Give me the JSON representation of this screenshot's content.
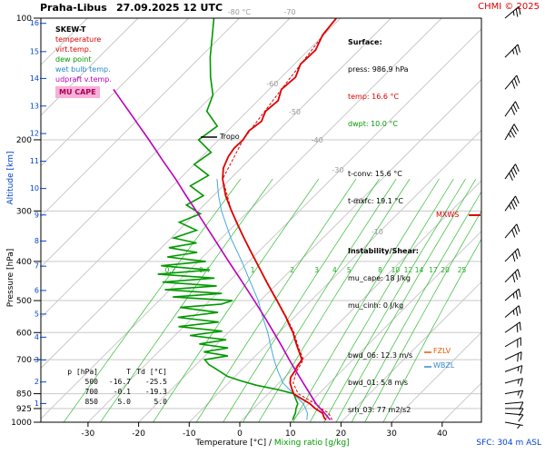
{
  "header": {
    "station": "Praha-Libus",
    "datetime": "27.09.2025 12 UTC",
    "copyright": "CHMI © 2025"
  },
  "legend": {
    "title": "SKEW-T",
    "items": [
      {
        "label": "temperature",
        "color": "#dd0000"
      },
      {
        "label": "virt.temp.",
        "color": "#dd0000"
      },
      {
        "label": "dew point",
        "color": "#009900"
      },
      {
        "label": "wet bulb temp.",
        "color": "#2288cc"
      },
      {
        "label": "udpraft v.temp.",
        "color": "#bb00bb"
      }
    ],
    "mu_cape_label": "MU CAPE",
    "mu_cape_bg": "#f7b0d8",
    "mu_cape_color": "#aa0055"
  },
  "surface_panel": {
    "title": "Surface:",
    "rows": [
      {
        "text": "press: 986.9 hPa",
        "color": "#000000"
      },
      {
        "text": "temp: 16.6 °C",
        "color": "#dd0000"
      },
      {
        "text": "dwpt: 10.0 °C",
        "color": "#009900"
      },
      {
        "text": "t-conv: 15.6 °C",
        "color": "#000000"
      },
      {
        "text": "t-mxfc: 19.1 °C",
        "color": "#000000"
      }
    ]
  },
  "instability_panel": {
    "title": "Instability/Shear:",
    "rows": [
      {
        "text": "mu_cape: 18 J/kg",
        "color": "#000000"
      },
      {
        "text": "mu_cinh: 0 J/kg",
        "color": "#000000"
      }
    ],
    "rows2": [
      {
        "text": "bwd_06: 12.3 m/s",
        "color": "#000000"
      },
      {
        "text": "bwd_01: 5.8 m/s",
        "color": "#000000"
      },
      {
        "text": "srh_03: 77 m2/s2",
        "color": "#000000"
      }
    ]
  },
  "level_table": {
    "headers": [
      "p [hPa]",
      "T",
      "Td [°C]"
    ],
    "rows": [
      [
        "500",
        "-16.7",
        "-25.5"
      ],
      [
        "700",
        "-0.1",
        "-19.3"
      ],
      [
        "850",
        "5.0",
        "5.0"
      ]
    ]
  },
  "markers": {
    "tropo": "Tropo",
    "mxws": "MXWS",
    "fzlv": "FZLV",
    "wbzl": "WBZL"
  },
  "axis": {
    "pressure_label": "Pressure [hPa]",
    "altitude_label": "Altitude [km]",
    "x_label_temp": "Temperature [°C]",
    "x_label_sep": " / ",
    "x_label_mix": "Mixing ratio [g/kg]",
    "sfc_label": "SFC: 304 m ASL"
  },
  "chart_data": {
    "type": "line",
    "diagram": "skew-t-log-p",
    "pressure_range_hpa": [
      100,
      1000
    ],
    "temp_axis_range_c": [
      -30,
      40
    ],
    "pressure_ticks_hpa": [
      100,
      200,
      300,
      400,
      500,
      600,
      700,
      850,
      925,
      1000
    ],
    "temp_ticks_c": [
      -30,
      -20,
      -10,
      0,
      10,
      20,
      30,
      40
    ],
    "altitude_marks_km": [
      [
        16,
        103
      ],
      [
        15,
        121
      ],
      [
        14,
        141
      ],
      [
        13,
        165
      ],
      [
        12,
        193
      ],
      [
        11,
        226
      ],
      [
        10,
        264
      ],
      [
        9,
        307
      ],
      [
        8,
        356
      ],
      [
        7,
        411
      ],
      [
        6,
        472
      ],
      [
        5,
        540
      ],
      [
        4,
        616
      ],
      [
        3,
        701
      ],
      [
        2,
        795
      ],
      [
        1,
        899
      ]
    ],
    "isotherm_labels": [
      {
        "text": "-80 °C",
        "t": -80,
        "y": 16
      },
      {
        "text": "-70",
        "t": -70,
        "y": 16
      },
      {
        "text": "-60",
        "t": -60,
        "y": 95
      },
      {
        "text": "-50",
        "t": -50,
        "y": 126
      },
      {
        "text": "-40",
        "t": -40,
        "y": 157
      },
      {
        "text": "-30",
        "t": -30,
        "y": 190
      },
      {
        "text": "-20",
        "t": -20,
        "y": 224
      },
      {
        "text": "-10",
        "t": -10,
        "y": 258
      }
    ],
    "mixing_ratio_gkg": [
      0.2,
      0.4,
      1,
      2,
      3,
      4,
      5,
      8,
      10,
      12,
      14,
      17,
      20,
      25
    ],
    "tropopause_hpa": 197,
    "series": [
      {
        "name": "wet bulb temp.",
        "color": "#44aadd",
        "width": 1,
        "dash": "",
        "points": [
          [
            986.9,
            12.8
          ],
          [
            950,
            11.6
          ],
          [
            925,
            10.3
          ],
          [
            900,
            8.9
          ],
          [
            850,
            5.0
          ],
          [
            800,
            0.8
          ],
          [
            750,
            -2.4
          ],
          [
            700,
            -5.6
          ],
          [
            650,
            -8.8
          ],
          [
            600,
            -12.2
          ],
          [
            550,
            -16.2
          ],
          [
            500,
            -20.4
          ],
          [
            450,
            -25.6
          ],
          [
            400,
            -31.4
          ],
          [
            350,
            -38.2
          ],
          [
            300,
            -45.4
          ],
          [
            275,
            -49.0
          ],
          [
            250,
            -52.6
          ]
        ]
      },
      {
        "name": "virt.temp.",
        "color": "#dd0000",
        "width": 1,
        "dash": "3 2",
        "points": [
          [
            986.9,
            17.8
          ],
          [
            950,
            15.8
          ],
          [
            925,
            13.4
          ],
          [
            900,
            11.3
          ],
          [
            850,
            5.9
          ],
          [
            800,
            2.8
          ],
          [
            750,
            1.2
          ],
          [
            700,
            0.2
          ],
          [
            650,
            -3.4
          ],
          [
            600,
            -7.0
          ],
          [
            550,
            -11.5
          ],
          [
            500,
            -16.6
          ],
          [
            450,
            -22.3
          ],
          [
            400,
            -28.6
          ],
          [
            350,
            -35.6
          ],
          [
            300,
            -43.4
          ],
          [
            250,
            -51.5
          ],
          [
            200,
            -55.2
          ],
          [
            150,
            -57.6
          ],
          [
            100,
            -60.8
          ]
        ]
      },
      {
        "name": "dew point",
        "color": "#009900",
        "width": 1.6,
        "dash": "",
        "points": [
          [
            986.9,
            10.0
          ],
          [
            970,
            9.6
          ],
          [
            950,
            9.2
          ],
          [
            925,
            8.4
          ],
          [
            900,
            7.8
          ],
          [
            875,
            6.4
          ],
          [
            850,
            5.0
          ],
          [
            830,
            1.0
          ],
          [
            810,
            -4.0
          ],
          [
            790,
            -8.0
          ],
          [
            770,
            -11.5
          ],
          [
            740,
            -15.0
          ],
          [
            720,
            -17.5
          ],
          [
            700,
            -19.3
          ],
          [
            685,
            -15.5
          ],
          [
            670,
            -21.0
          ],
          [
            655,
            -17.0
          ],
          [
            640,
            -23.5
          ],
          [
            625,
            -19.0
          ],
          [
            610,
            -27.0
          ],
          [
            595,
            -21.5
          ],
          [
            580,
            -31.0
          ],
          [
            565,
            -24.0
          ],
          [
            550,
            -33.0
          ],
          [
            535,
            -26.0
          ],
          [
            520,
            -34.5
          ],
          [
            510,
            -27.0
          ],
          [
            500,
            -25.5
          ],
          [
            490,
            -38.0
          ],
          [
            480,
            -29.0
          ],
          [
            470,
            -41.0
          ],
          [
            460,
            -31.5
          ],
          [
            450,
            -43.0
          ],
          [
            440,
            -33.5
          ],
          [
            430,
            -45.5
          ],
          [
            420,
            -36.0
          ],
          [
            410,
            -46.5
          ],
          [
            400,
            -38.5
          ],
          [
            390,
            -47.0
          ],
          [
            380,
            -42.0
          ],
          [
            370,
            -48.5
          ],
          [
            360,
            -44.0
          ],
          [
            350,
            -49.5
          ],
          [
            335,
            -46.5
          ],
          [
            320,
            -51.5
          ],
          [
            305,
            -49.0
          ],
          [
            290,
            -53.5
          ],
          [
            275,
            -52.0
          ],
          [
            260,
            -56.5
          ],
          [
            245,
            -55.0
          ],
          [
            230,
            -60.0
          ],
          [
            215,
            -59.0
          ],
          [
            200,
            -64.0
          ],
          [
            185,
            -63.0
          ],
          [
            170,
            -68.0
          ],
          [
            155,
            -70.0
          ],
          [
            140,
            -74.0
          ],
          [
            125,
            -78.0
          ],
          [
            110,
            -82.0
          ],
          [
            100,
            -85.0
          ]
        ]
      },
      {
        "name": "temperature",
        "color": "#dd0000",
        "width": 1.8,
        "dash": "",
        "points": [
          [
            986.9,
            16.6
          ],
          [
            975,
            15.8
          ],
          [
            950,
            14.6
          ],
          [
            925,
            12.2
          ],
          [
            900,
            10.2
          ],
          [
            875,
            7.6
          ],
          [
            850,
            5.0
          ],
          [
            825,
            3.6
          ],
          [
            800,
            2.2
          ],
          [
            775,
            1.2
          ],
          [
            750,
            0.8
          ],
          [
            725,
            0.3
          ],
          [
            700,
            -0.1
          ],
          [
            675,
            -1.8
          ],
          [
            650,
            -3.6
          ],
          [
            625,
            -5.4
          ],
          [
            600,
            -7.2
          ],
          [
            575,
            -9.4
          ],
          [
            550,
            -11.6
          ],
          [
            525,
            -14.1
          ],
          [
            500,
            -16.7
          ],
          [
            475,
            -19.5
          ],
          [
            450,
            -22.4
          ],
          [
            425,
            -25.4
          ],
          [
            400,
            -28.6
          ],
          [
            375,
            -32.0
          ],
          [
            350,
            -35.6
          ],
          [
            325,
            -39.4
          ],
          [
            300,
            -43.4
          ],
          [
            275,
            -47.6
          ],
          [
            250,
            -51.5
          ],
          [
            235,
            -53.5
          ],
          [
            220,
            -54.8
          ],
          [
            210,
            -55.3
          ],
          [
            200,
            -55.2
          ],
          [
            190,
            -55.8
          ],
          [
            180,
            -55.2
          ],
          [
            170,
            -56.4
          ],
          [
            160,
            -56.0
          ],
          [
            150,
            -57.6
          ],
          [
            140,
            -57.2
          ],
          [
            130,
            -58.8
          ],
          [
            120,
            -58.6
          ],
          [
            110,
            -60.2
          ],
          [
            100,
            -60.8
          ]
        ]
      },
      {
        "name": "udpraft v.temp.",
        "color": "#bb00bb",
        "width": 1.6,
        "dash": "",
        "points": [
          [
            986.9,
            17.4
          ],
          [
            950,
            15.0
          ],
          [
            925,
            13.2
          ],
          [
            900,
            11.4
          ],
          [
            850,
            8.2
          ],
          [
            800,
            4.8
          ],
          [
            750,
            1.2
          ],
          [
            700,
            -2.6
          ],
          [
            650,
            -6.6
          ],
          [
            600,
            -11.0
          ],
          [
            550,
            -15.8
          ],
          [
            500,
            -21.2
          ],
          [
            450,
            -27.2
          ],
          [
            400,
            -34.0
          ],
          [
            350,
            -41.6
          ],
          [
            300,
            -50.4
          ],
          [
            275,
            -55.4
          ],
          [
            250,
            -60.8
          ],
          [
            225,
            -67.0
          ],
          [
            200,
            -73.8
          ],
          [
            185,
            -78.4
          ],
          [
            170,
            -83.4
          ],
          [
            160,
            -87.0
          ],
          [
            150,
            -90.8
          ]
        ]
      }
    ],
    "wind_barbs": [
      {
        "p": 1000,
        "dir": 100,
        "spd": 2.5
      },
      {
        "p": 950,
        "dir": 95,
        "spd": 5
      },
      {
        "p": 925,
        "dir": 90,
        "spd": 5
      },
      {
        "p": 900,
        "dir": 85,
        "spd": 5
      },
      {
        "p": 850,
        "dir": 80,
        "spd": 7.5
      },
      {
        "p": 800,
        "dir": 75,
        "spd": 7.5
      },
      {
        "p": 750,
        "dir": 70,
        "spd": 7.5
      },
      {
        "p": 700,
        "dir": 65,
        "spd": 10
      },
      {
        "p": 650,
        "dir": 60,
        "spd": 10
      },
      {
        "p": 600,
        "dir": 55,
        "spd": 10
      },
      {
        "p": 550,
        "dir": 50,
        "spd": 12.5
      },
      {
        "p": 500,
        "dir": 50,
        "spd": 12.5
      },
      {
        "p": 450,
        "dir": 45,
        "spd": 15
      },
      {
        "p": 400,
        "dir": 45,
        "spd": 15
      },
      {
        "p": 350,
        "dir": 40,
        "spd": 15
      },
      {
        "p": 300,
        "dir": 35,
        "spd": 17.5
      },
      {
        "p": 250,
        "dir": 35,
        "spd": 20
      },
      {
        "p": 200,
        "dir": 30,
        "spd": 17.5
      },
      {
        "p": 175,
        "dir": 35,
        "spd": 15
      },
      {
        "p": 150,
        "dir": 40,
        "spd": 15
      },
      {
        "p": 125,
        "dir": 45,
        "spd": 12.5
      },
      {
        "p": 100,
        "dir": 50,
        "spd": 12.5
      }
    ]
  }
}
